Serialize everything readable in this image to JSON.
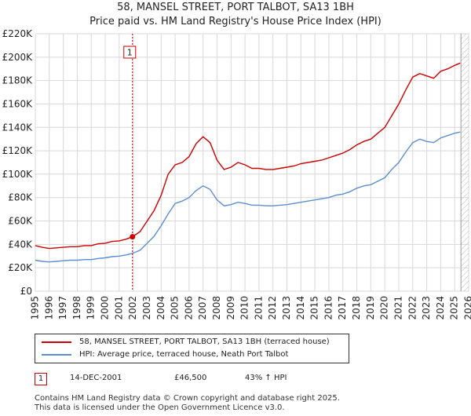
{
  "header": {
    "title": "58, MANSEL STREET, PORT TALBOT, SA13 1BH",
    "subtitle": "Price paid vs. HM Land Registry's House Price Index (HPI)"
  },
  "chart_data": {
    "type": "line",
    "ylim": [
      0,
      220000
    ],
    "xlim": [
      1995,
      2026
    ],
    "yticks": [
      0,
      20000,
      40000,
      60000,
      80000,
      100000,
      120000,
      140000,
      160000,
      180000,
      200000,
      220000
    ],
    "ytick_labels": [
      "£0",
      "£20K",
      "£40K",
      "£60K",
      "£80K",
      "£100K",
      "£120K",
      "£140K",
      "£160K",
      "£180K",
      "£200K",
      "£220K"
    ],
    "xticks": [
      "1995",
      "1996",
      "1997",
      "1998",
      "1999",
      "2000",
      "2001",
      "2002",
      "2003",
      "2004",
      "2005",
      "2006",
      "2007",
      "2008",
      "2009",
      "2010",
      "2011",
      "2012",
      "2013",
      "2014",
      "2015",
      "2016",
      "2017",
      "2018",
      "2019",
      "2020",
      "2021",
      "2022",
      "2023",
      "2024",
      "2025",
      "2026"
    ],
    "series": [
      {
        "name": "58, MANSEL STREET, PORT TALBOT, SA13 1BH (terraced house)",
        "color": "#cc0000",
        "x": [
          1995.0,
          1995.5,
          1996.0,
          1996.5,
          1997.0,
          1997.5,
          1998.0,
          1998.5,
          1999.0,
          1999.5,
          2000.0,
          2000.5,
          2001.0,
          2001.5,
          2001.95,
          2002.5,
          2003.0,
          2003.5,
          2004.0,
          2004.5,
          2005.0,
          2005.5,
          2006.0,
          2006.5,
          2007.0,
          2007.5,
          2008.0,
          2008.5,
          2009.0,
          2009.5,
          2010.0,
          2010.5,
          2011.0,
          2011.5,
          2012.0,
          2012.5,
          2013.0,
          2013.5,
          2014.0,
          2014.5,
          2015.0,
          2015.5,
          2016.0,
          2016.5,
          2017.0,
          2017.5,
          2018.0,
          2018.5,
          2019.0,
          2019.5,
          2020.0,
          2020.5,
          2021.0,
          2021.5,
          2022.0,
          2022.5,
          2023.0,
          2023.5,
          2024.0,
          2024.5,
          2025.0,
          2025.4
        ],
        "values": [
          39000,
          37500,
          36500,
          37000,
          37500,
          38000,
          38000,
          39000,
          39000,
          40500,
          41000,
          42500,
          43000,
          44500,
          46500,
          51000,
          60000,
          69000,
          82000,
          100000,
          108000,
          110000,
          115000,
          126000,
          132000,
          127000,
          112000,
          104000,
          106000,
          110000,
          108000,
          105000,
          105000,
          104000,
          104000,
          105000,
          106000,
          107000,
          109000,
          110000,
          111000,
          112000,
          114000,
          116000,
          118000,
          121000,
          125000,
          128000,
          130000,
          135000,
          140000,
          150000,
          160000,
          172000,
          183000,
          186000,
          184000,
          182000,
          188000,
          190000,
          193000,
          195000
        ]
      },
      {
        "name": "HPI: Average price, terraced house, Neath Port Talbot",
        "color": "#5b8fd0",
        "x": [
          1995.0,
          1995.5,
          1996.0,
          1996.5,
          1997.0,
          1997.5,
          1998.0,
          1998.5,
          1999.0,
          1999.5,
          2000.0,
          2000.5,
          2001.0,
          2001.5,
          2002.0,
          2002.5,
          2003.0,
          2003.5,
          2004.0,
          2004.5,
          2005.0,
          2005.5,
          2006.0,
          2006.5,
          2007.0,
          2007.5,
          2008.0,
          2008.5,
          2009.0,
          2009.5,
          2010.0,
          2010.5,
          2011.0,
          2011.5,
          2012.0,
          2012.5,
          2013.0,
          2013.5,
          2014.0,
          2014.5,
          2015.0,
          2015.5,
          2016.0,
          2016.5,
          2017.0,
          2017.5,
          2018.0,
          2018.5,
          2019.0,
          2019.5,
          2020.0,
          2020.5,
          2021.0,
          2021.5,
          2022.0,
          2022.5,
          2023.0,
          2023.5,
          2024.0,
          2024.5,
          2025.0,
          2025.4
        ],
        "values": [
          26500,
          25500,
          25000,
          25500,
          26000,
          26500,
          26500,
          27000,
          27000,
          28000,
          28500,
          29500,
          30000,
          31000,
          32500,
          35000,
          41000,
          47000,
          56000,
          66000,
          75000,
          77000,
          80000,
          86000,
          90000,
          87000,
          78000,
          73000,
          74000,
          76000,
          75000,
          73500,
          73500,
          73000,
          73000,
          73500,
          74000,
          75000,
          76000,
          77000,
          78000,
          79000,
          80000,
          82000,
          83000,
          85000,
          88000,
          90000,
          91000,
          94000,
          97000,
          104000,
          110000,
          119000,
          127000,
          130000,
          128000,
          127000,
          131000,
          133000,
          135000,
          136000
        ]
      }
    ],
    "annotations": [
      {
        "label": "1",
        "x": 2001.95,
        "y": 46500
      }
    ],
    "grid": true,
    "legend_position": "bottom"
  },
  "info": {
    "marker": "1",
    "date": "14-DEC-2001",
    "price": "£46,500",
    "hpi": "43% ↑ HPI"
  },
  "footer": {
    "line1": "Contains HM Land Registry data © Crown copyright and database right 2025.",
    "line2": "This data is licensed under the Open Government Licence v3.0."
  }
}
